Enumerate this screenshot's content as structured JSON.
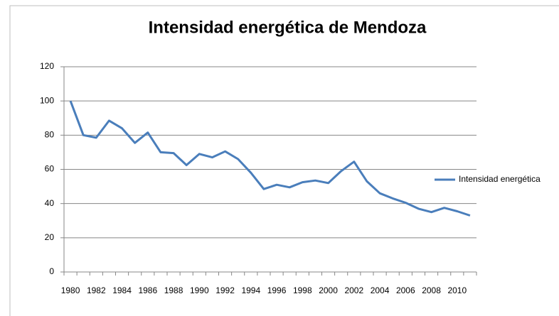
{
  "chart_data": {
    "type": "line",
    "title": "Intensidad energética de Mendoza",
    "categories": [
      "1980",
      null,
      "1982",
      null,
      "1984",
      null,
      "1986",
      null,
      "1988",
      null,
      "1990",
      null,
      "1992",
      null,
      "1994",
      null,
      "1996",
      null,
      "1998",
      null,
      "2000",
      null,
      "2002",
      null,
      "2004",
      null,
      "2006",
      null,
      "2008",
      null,
      "2010",
      null
    ],
    "series": [
      {
        "name": "Intensidad energética",
        "color": "#4a7ebb",
        "values": [
          100,
          80,
          78.5,
          88.5,
          84,
          75.5,
          81.5,
          70,
          69.5,
          62.5,
          69,
          67,
          70.5,
          66,
          58,
          48.5,
          51,
          49.5,
          52.5,
          53.5,
          52,
          59,
          64.5,
          53,
          46,
          43,
          40.5,
          37,
          35,
          37.5,
          35.5,
          33
        ]
      }
    ],
    "ylim": [
      0,
      120
    ],
    "yticks": [
      0,
      20,
      40,
      60,
      80,
      100,
      120
    ],
    "grid": true,
    "legend": "right"
  }
}
